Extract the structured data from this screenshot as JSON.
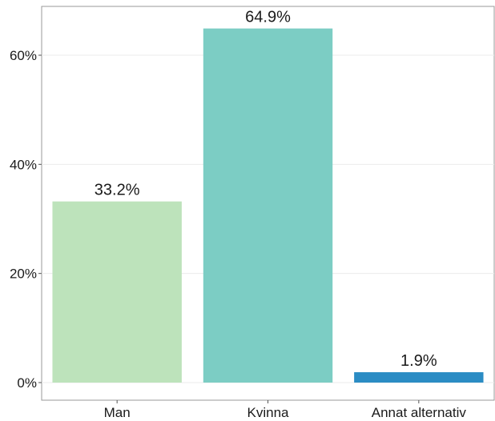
{
  "chart_data": {
    "type": "bar",
    "title": "",
    "xlabel": "",
    "ylabel": "",
    "categories": [
      "Man",
      "Kvinna",
      "Annat alternativ"
    ],
    "values": [
      33.2,
      64.9,
      1.9
    ],
    "value_labels": [
      "33.2%",
      "64.9%",
      "1.9%"
    ],
    "colors": [
      "#bde3bb",
      "#7ccdc4",
      "#2b8cc4"
    ],
    "ylim": [
      0,
      68.3
    ],
    "yticks": [
      0,
      20,
      40,
      60
    ],
    "ytick_labels": [
      "0%",
      "20%",
      "40%",
      "60%"
    ],
    "grid": true,
    "legend": "none"
  }
}
